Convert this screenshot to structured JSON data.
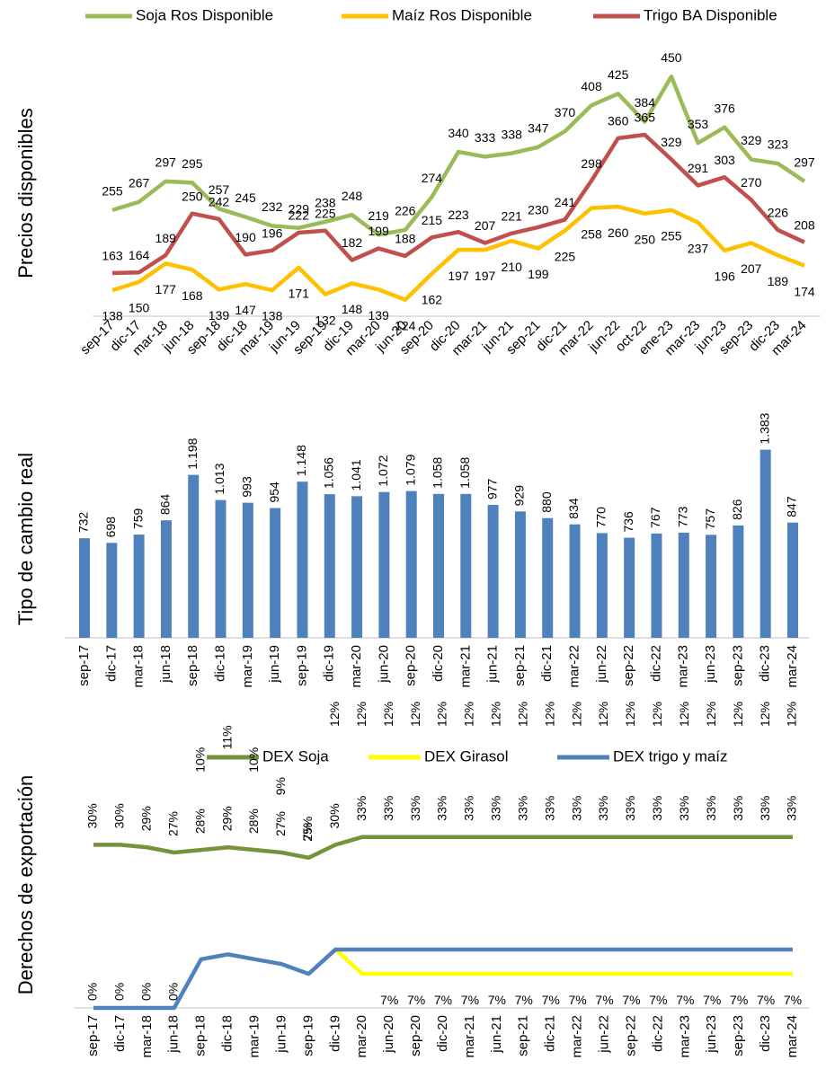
{
  "chart_data": [
    {
      "type": "line",
      "ylabel": "Precios disponibles",
      "legend": "top",
      "categories": [
        "sep-17",
        "dic-17",
        "mar-18",
        "jun-18",
        "sep-18",
        "dic-18",
        "mar-19",
        "jun-19",
        "sep-19",
        "dic-19",
        "mar-20",
        "jun-20",
        "sep-20",
        "dic-20",
        "mar-21",
        "jun-21",
        "sep-21",
        "dic-21",
        "mar-22",
        "jun-22",
        "oct-22",
        "ene-23",
        "mar-23",
        "jun-23",
        "sep-23",
        "dic-23",
        "mar-24"
      ],
      "ylim": [
        100,
        470
      ],
      "series": [
        {
          "name": "Soja Ros Disponible",
          "color": "#9bbb59",
          "label_color": "#6e9a35",
          "values": [
            255,
            267,
            297,
            295,
            257,
            245,
            232,
            229,
            238,
            248,
            219,
            226,
            274,
            340,
            333,
            338,
            347,
            370,
            408,
            425,
            384,
            450,
            353,
            376,
            329,
            323,
            297
          ]
        },
        {
          "name": "Maíz Ros Disponible",
          "color": "#ffc000",
          "label_color": "#c09a00",
          "values": [
            138,
            150,
            177,
            168,
            139,
            147,
            138,
            171,
            132,
            148,
            139,
            124,
            162,
            197,
            197,
            210,
            199,
            225,
            258,
            260,
            250,
            255,
            237,
            196,
            207,
            189,
            174
          ]
        },
        {
          "name": "Trigo BA Disponible",
          "color": "#c0504d",
          "label_color": "#c0504d",
          "values": [
            163,
            164,
            189,
            250,
            242,
            190,
            196,
            222,
            225,
            182,
            199,
            188,
            215,
            223,
            207,
            221,
            230,
            241,
            298,
            360,
            365,
            329,
            291,
            303,
            270,
            226,
            208
          ]
        }
      ]
    },
    {
      "type": "bar",
      "ylabel": "Tipo de cambio real",
      "categories": [
        "sep-17",
        "dic-17",
        "mar-18",
        "jun-18",
        "sep-18",
        "dic-18",
        "mar-19",
        "jun-19",
        "sep-19",
        "dic-19",
        "mar-20",
        "jun-20",
        "sep-20",
        "dic-20",
        "mar-21",
        "jun-21",
        "sep-21",
        "dic-21",
        "mar-22",
        "jun-22",
        "sep-22",
        "dic-22",
        "mar-23",
        "jun-23",
        "sep-23",
        "dic-23",
        "mar-24"
      ],
      "ylim": [
        0,
        1400
      ],
      "color": "#4f81bd",
      "values": [
        732,
        698,
        759,
        864,
        1198,
        1013,
        993,
        954,
        1148,
        1056,
        1041,
        1072,
        1079,
        1058,
        1058,
        977,
        929,
        880,
        834,
        770,
        736,
        767,
        773,
        757,
        826,
        1383,
        847
      ],
      "value_labels": [
        "732",
        "698",
        "759",
        "864",
        "1.198",
        "1.013",
        "993",
        "954",
        "1.148",
        "1.056",
        "1.041",
        "1.072",
        "1.079",
        "1.058",
        "1.058",
        "977",
        "929",
        "880",
        "834",
        "770",
        "736",
        "767",
        "773",
        "757",
        "826",
        "1.383",
        "847"
      ]
    },
    {
      "type": "line",
      "ylabel": "Derechos de exportación",
      "legend": "top",
      "categories": [
        "sep-17",
        "dic-17",
        "mar-18",
        "jun-18",
        "sep-18",
        "dic-18",
        "mar-19",
        "jun-19",
        "sep-19",
        "dic-19",
        "mar-20",
        "jun-20",
        "sep-20",
        "dic-20",
        "mar-21",
        "jun-21",
        "sep-21",
        "dic-21",
        "mar-22",
        "jun-22",
        "sep-22",
        "dic-22",
        "mar-23",
        "jun-23",
        "sep-23",
        "dic-23",
        "mar-24"
      ],
      "ylim": [
        0,
        50
      ],
      "y2lim": [
        -33,
        61
      ],
      "series": [
        {
          "name": "DEX Soja",
          "color": "#76933c",
          "axis": "y2",
          "values": [
            30,
            30,
            29,
            27,
            28,
            29,
            28,
            27,
            25,
            30,
            33,
            33,
            33,
            33,
            33,
            33,
            33,
            33,
            33,
            33,
            33,
            33,
            33,
            33,
            33,
            33,
            33
          ],
          "value_labels": [
            "30%",
            "30%",
            "29%",
            "27%",
            "28%",
            "29%",
            "28%",
            "27%",
            "25%",
            "30%",
            "33%",
            "33%",
            "33%",
            "33%",
            "33%",
            "33%",
            "33%",
            "33%",
            "33%",
            "33%",
            "33%",
            "33%",
            "33%",
            "33%",
            "33%",
            "33%",
            "33%"
          ]
        },
        {
          "name": "DEX Girasol",
          "color": "#ffff00",
          "values": [
            null,
            null,
            null,
            null,
            null,
            null,
            null,
            null,
            null,
            12,
            7,
            7,
            7,
            7,
            7,
            7,
            7,
            7,
            7,
            7,
            7,
            7,
            7,
            7,
            7,
            7,
            7
          ],
          "value_labels": [
            null,
            null,
            null,
            null,
            null,
            null,
            null,
            null,
            null,
            null,
            null,
            "7%",
            "7%",
            "7%",
            "7%",
            "7%",
            "7%",
            "7%",
            "7%",
            "7%",
            "7%",
            "7%",
            "7%",
            "7%",
            "7%",
            "7%",
            "7%"
          ]
        },
        {
          "name": "DEX trigo y maíz",
          "color": "#4f81bd",
          "values": [
            0,
            0,
            0,
            0,
            10,
            11,
            10,
            9,
            7,
            12,
            12,
            12,
            12,
            12,
            12,
            12,
            12,
            12,
            12,
            12,
            12,
            12,
            12,
            12,
            12,
            12,
            12
          ],
          "value_labels": [
            "0%",
            "0%",
            "0%",
            "0%",
            "10%",
            "11%",
            "10%",
            "9%",
            "7%",
            "12%",
            "12%",
            "12%",
            "12%",
            "12%",
            "12%",
            "12%",
            "12%",
            "12%",
            "12%",
            "12%",
            "12%",
            "12%",
            "12%",
            "12%",
            "12%",
            "12%",
            "12%"
          ]
        }
      ]
    }
  ]
}
